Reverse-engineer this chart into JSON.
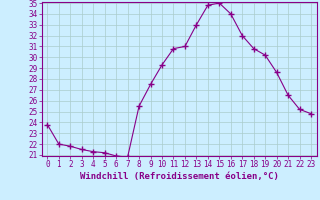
{
  "x": [
    0,
    1,
    2,
    3,
    4,
    5,
    6,
    7,
    8,
    9,
    10,
    11,
    12,
    13,
    14,
    15,
    16,
    17,
    18,
    19,
    20,
    21,
    22,
    23
  ],
  "y": [
    23.8,
    22.0,
    21.8,
    21.5,
    21.3,
    21.2,
    20.9,
    20.8,
    25.5,
    27.5,
    29.3,
    30.8,
    31.0,
    33.0,
    34.8,
    35.0,
    34.0,
    32.0,
    30.8,
    30.2,
    28.6,
    26.5,
    25.2,
    24.8
  ],
  "line_color": "#880088",
  "marker": "+",
  "marker_size": 4,
  "marker_lw": 1.0,
  "bg_color": "#cceeff",
  "grid_color": "#aacccc",
  "axis_color": "#880088",
  "xlabel": "Windchill (Refroidissement éolien,°C)",
  "ylabel": "",
  "ylim": [
    21,
    35
  ],
  "xlim": [
    -0.5,
    23.5
  ],
  "yticks": [
    21,
    22,
    23,
    24,
    25,
    26,
    27,
    28,
    29,
    30,
    31,
    32,
    33,
    34,
    35
  ],
  "xticks": [
    0,
    1,
    2,
    3,
    4,
    5,
    6,
    7,
    8,
    9,
    10,
    11,
    12,
    13,
    14,
    15,
    16,
    17,
    18,
    19,
    20,
    21,
    22,
    23
  ],
  "label_fontsize": 6.5,
  "tick_fontsize": 5.5
}
